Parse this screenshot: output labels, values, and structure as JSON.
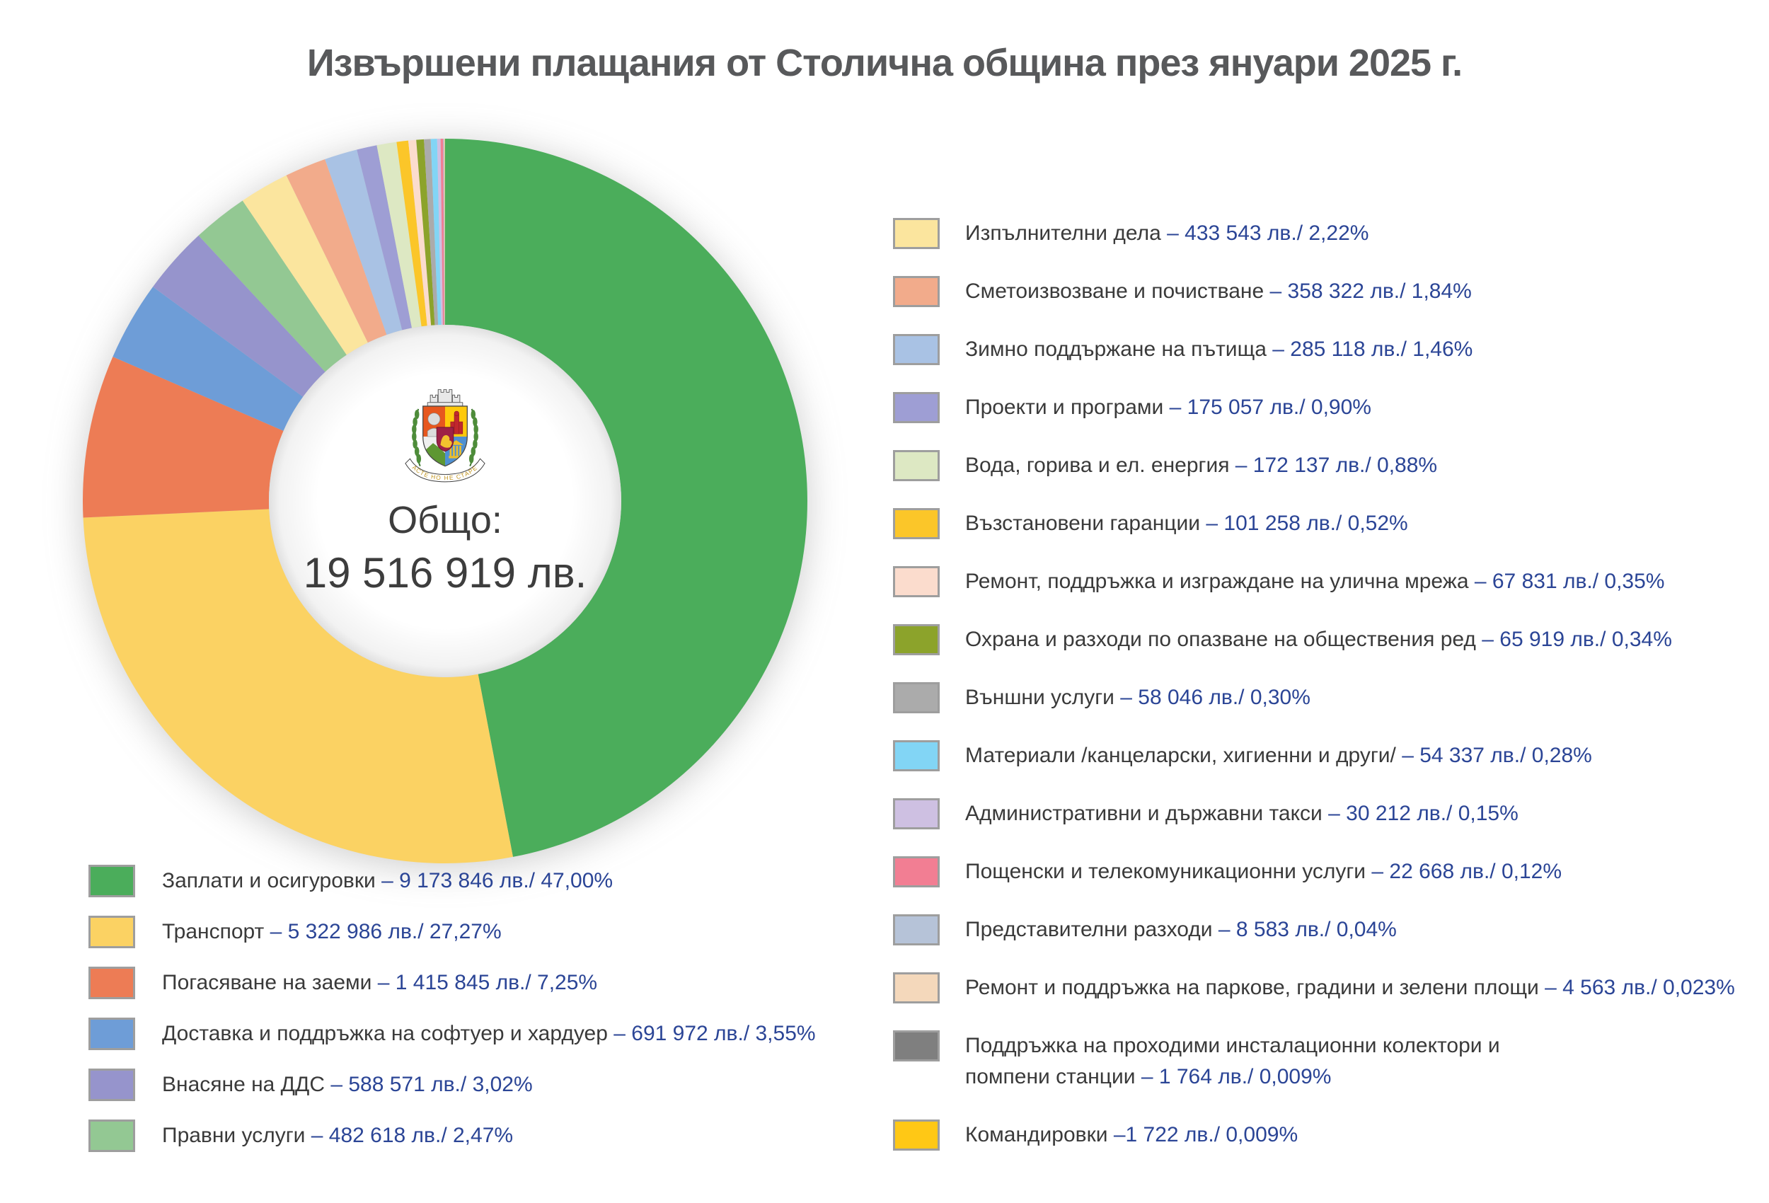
{
  "title": "Извършени плащания от Столична община през януари 2025 г.",
  "center": {
    "label": "Общо:",
    "total": "19 516 919 лв.",
    "motto": "РАСТЕ НО НЕ СТАРЕЕ"
  },
  "chart_data": {
    "type": "pie",
    "subtype": "donut",
    "title": "Извършени плащания от Столична община през януари 2025 г.",
    "total_value_lv": 19516919,
    "total_display": "Общо: 19 516 919 лв.",
    "unit": "лв.",
    "start_angle": "12-oclock",
    "direction": "clockwise",
    "legend_split": {
      "left_items": 6,
      "right_items": 16
    },
    "value_color": "#2b4596",
    "label_color": "#3a3a3a",
    "slices": [
      {
        "label": "Заплати и осигуровки",
        "amount_lv": 9173846,
        "percent": 47.0,
        "display": " – 9 173 846 лв./ 47,00%",
        "color": "#4bad5b"
      },
      {
        "label": "Транспорт",
        "amount_lv": 5322986,
        "percent": 27.27,
        "display": " – 5 322 986 лв./ 27,27%",
        "color": "#fbd263"
      },
      {
        "label": "Погасяване на заеми",
        "amount_lv": 1415845,
        "percent": 7.25,
        "display": "  – 1 415 845 лв./ 7,25%",
        "color": "#ed7c55"
      },
      {
        "label": "Доставка и поддръжка на софтуер и хардуер",
        "amount_lv": 691972,
        "percent": 3.55,
        "display": " – 691 972 лв./ 3,55%",
        "color": "#6e9dd7"
      },
      {
        "label": "Внасяне на ДДС",
        "amount_lv": 588571,
        "percent": 3.02,
        "display": "  – 588 571 лв./ 3,02%",
        "color": "#9694cc"
      },
      {
        "label": "Правни услуги",
        "amount_lv": 482618,
        "percent": 2.47,
        "display": " – 482 618 лв./ 2,47%",
        "color": "#93c893"
      },
      {
        "label": "Изпълнителни дела",
        "amount_lv": 433543,
        "percent": 2.22,
        "display": " – 433 543 лв./ 2,22%",
        "color": "#fbe59e"
      },
      {
        "label": "Сметоизвозване и почистване",
        "amount_lv": 358322,
        "percent": 1.84,
        "display": " – 358 322 лв./ 1,84%",
        "color": "#f2ab8b"
      },
      {
        "label": "Зимно поддържане на пътища",
        "amount_lv": 285118,
        "percent": 1.46,
        "display": " – 285 118 лв./ 1,46%",
        "color": "#a9c2e4"
      },
      {
        "label": "Проекти и програми",
        "amount_lv": 175057,
        "percent": 0.9,
        "display": " – 175 057 лв./ 0,90%",
        "color": "#9e9ed4"
      },
      {
        "label": "Вода, горива и ел. енергия",
        "amount_lv": 172137,
        "percent": 0.88,
        "display": " – 172 137 лв./ 0,88%",
        "color": "#dde8c3"
      },
      {
        "label": "Възстановени гаранции",
        "amount_lv": 101258,
        "percent": 0.52,
        "display": " – 101 258 лв./ 0,52%",
        "color": "#fbc629"
      },
      {
        "label": "Ремонт, поддръжка и изграждане на улична мрежа",
        "amount_lv": 67831,
        "percent": 0.35,
        "display": " – 67 831 лв./ 0,35%",
        "color": "#fbdccd"
      },
      {
        "label": "Охрана и разходи по опазване на обществения ред",
        "amount_lv": 65919,
        "percent": 0.34,
        "display": " – 65 919 лв./ 0,34%",
        "color": "#8ca32b"
      },
      {
        "label": "Външни услуги",
        "amount_lv": 58046,
        "percent": 0.3,
        "display": " – 58 046 лв./ 0,30%",
        "color": "#ababab"
      },
      {
        "label": "Материали /канцеларски, хигиенни и други/",
        "amount_lv": 54337,
        "percent": 0.28,
        "display": " – 54 337 лв./ 0,28%",
        "color": "#82d5f5"
      },
      {
        "label": "Административни и държавни такси",
        "amount_lv": 30212,
        "percent": 0.15,
        "display": " – 30 212 лв./ 0,15%",
        "color": "#cec0e2"
      },
      {
        "label": "Пощенски и телекомуникационни услуги",
        "amount_lv": 22668,
        "percent": 0.12,
        "display": " – 22 668 лв./ 0,12%",
        "color": "#f27e93"
      },
      {
        "label": "Представителни разходи",
        "amount_lv": 8583,
        "percent": 0.04,
        "display": " – 8 583 лв./ 0,04%",
        "color": "#b6c3d8"
      },
      {
        "label": "Ремонт и поддръжка на паркове, градини и зелени площи",
        "amount_lv": 4563,
        "percent": 0.023,
        "display": " – 4 563 лв./ 0,023%",
        "color": "#f4d8bb"
      },
      {
        "label": "Поддръжка на  проходими инсталационни колектори и\nпомпени станции",
        "amount_lv": 1764,
        "percent": 0.009,
        "display": " – 1 764 лв./ 0,009%",
        "color": "#7f7f7f"
      },
      {
        "label": "Командировки",
        "amount_lv": 1722,
        "percent": 0.009,
        "display": " –1 722 лв./ 0,009%",
        "color": "#ffc815"
      }
    ]
  }
}
